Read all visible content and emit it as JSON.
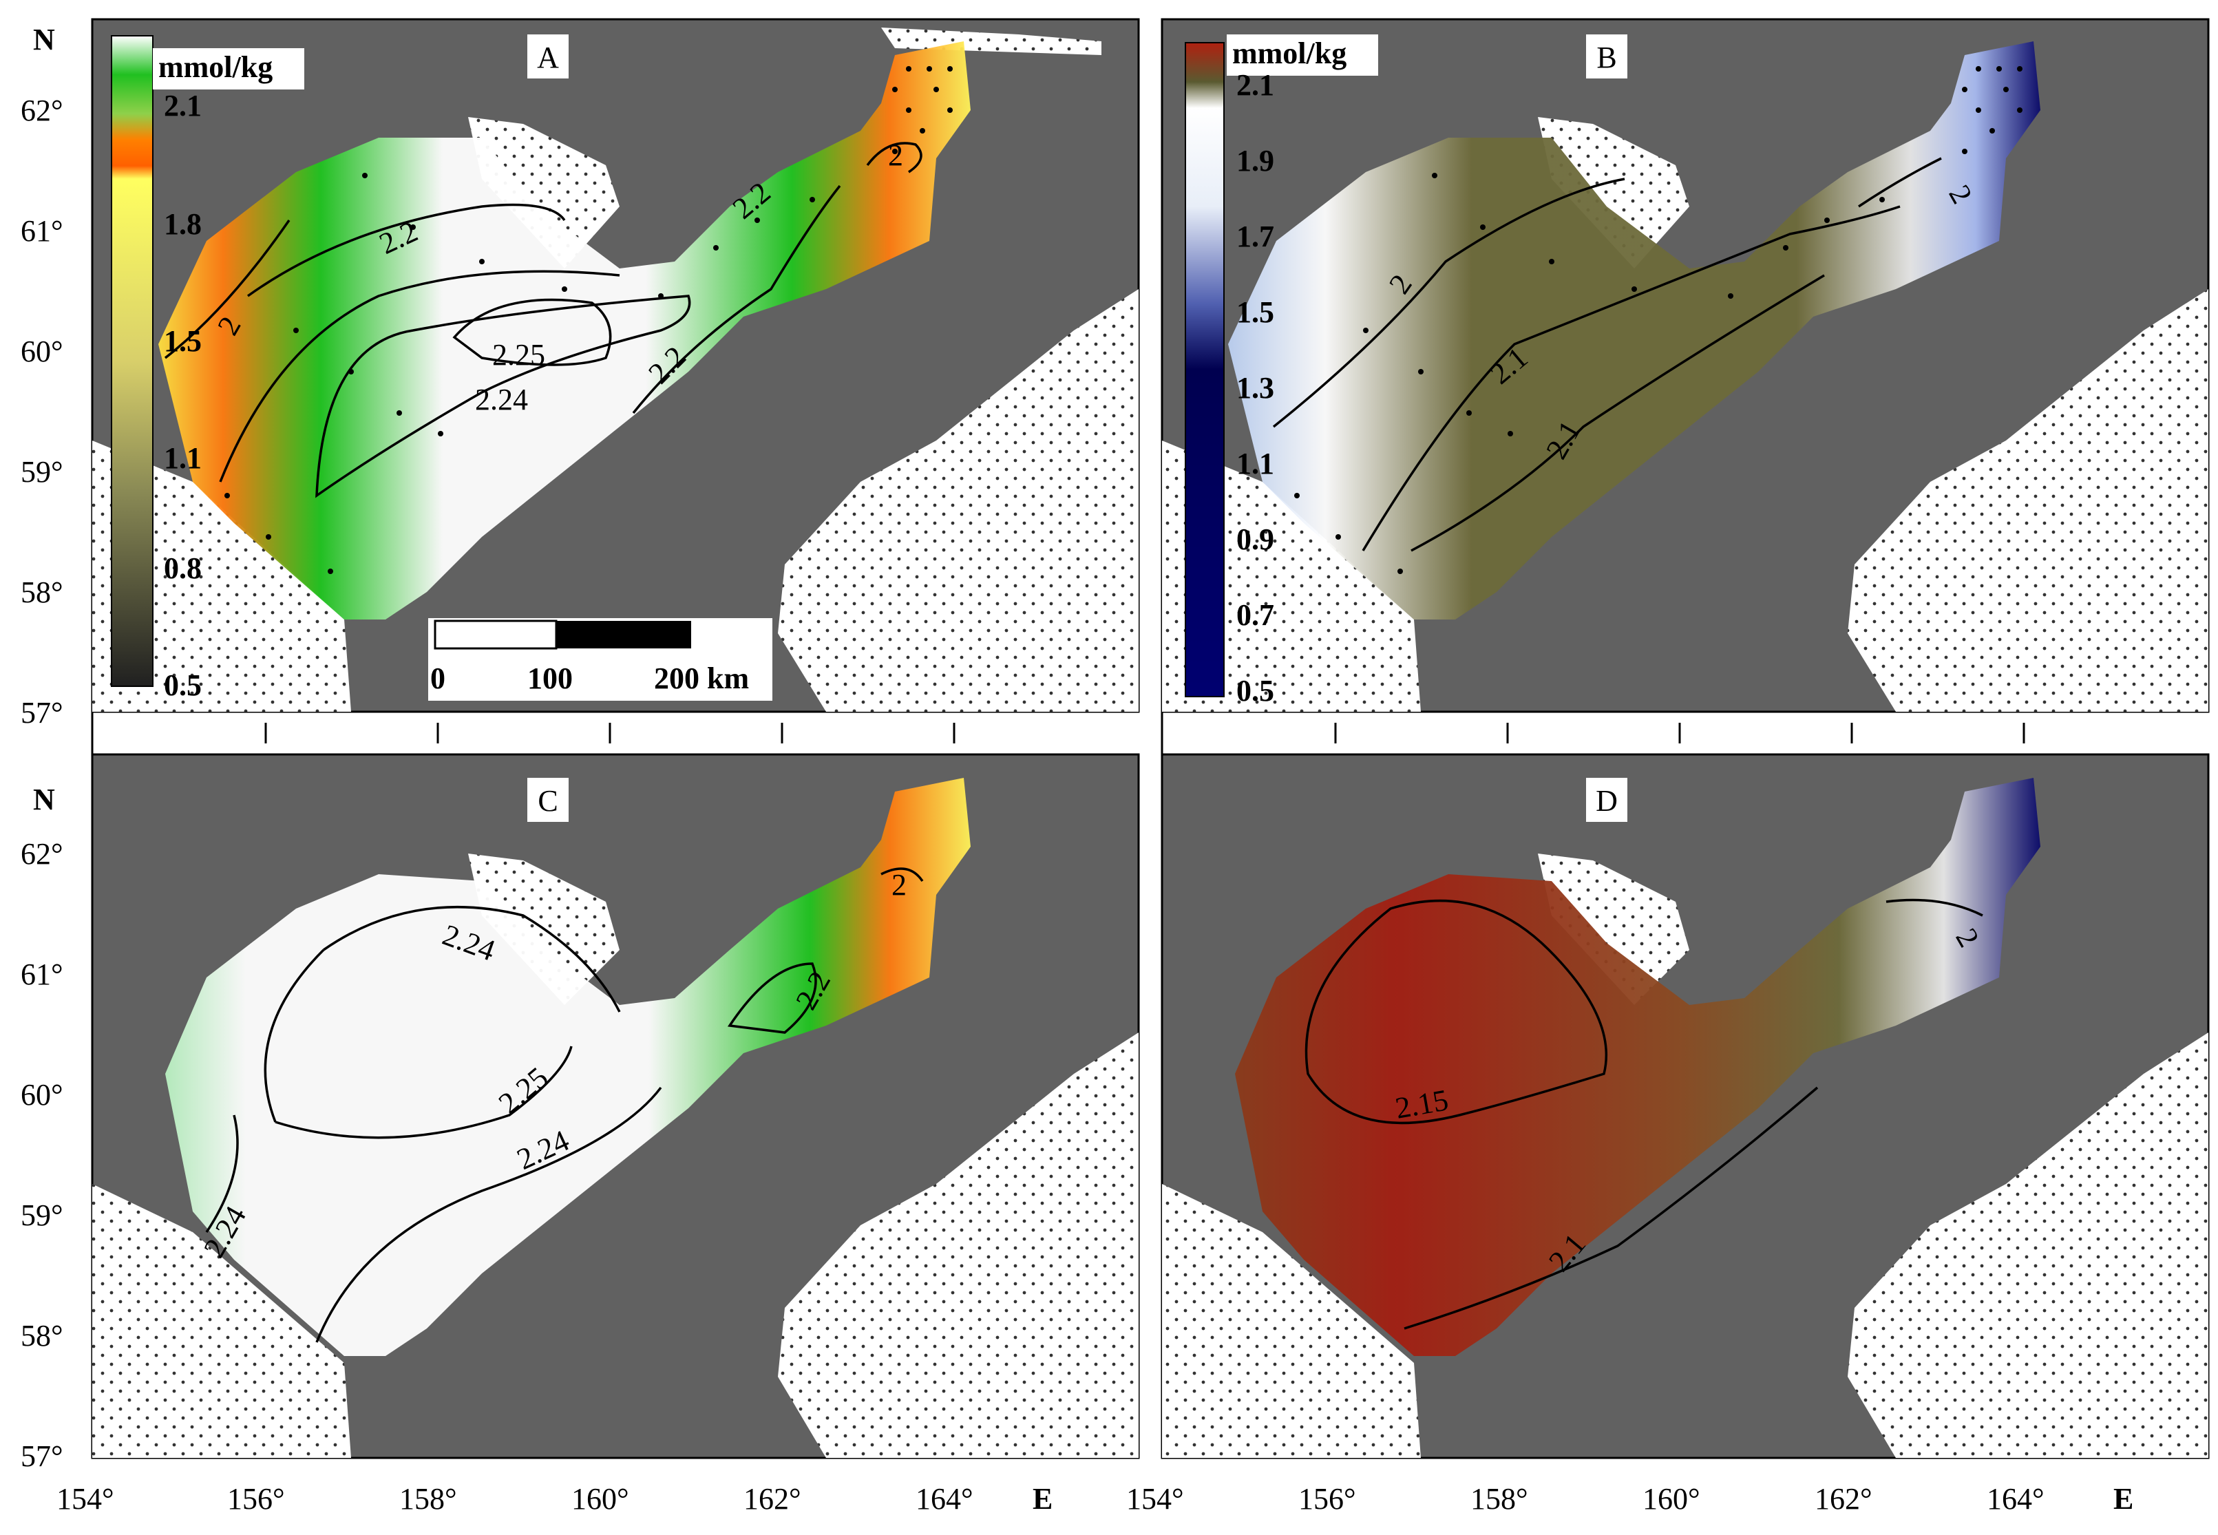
{
  "axes": {
    "north_label": "N",
    "east_label": "E",
    "lat_ticks": [
      "57°",
      "58°",
      "59°",
      "60°",
      "61°",
      "62°"
    ],
    "lon_ticks": [
      "154°",
      "156°",
      "158°",
      "160°",
      "162°",
      "164°"
    ]
  },
  "panels": {
    "A": {
      "letter": "A",
      "colorbar": {
        "unit": "mmol/kg",
        "ticks": [
          "2.1",
          "1.8",
          "1.5",
          "1.1",
          "0.8",
          "0.5"
        ],
        "colors": [
          "#ffffff",
          "#20c020",
          "#ff8000",
          "#ffff40",
          "#b0b060",
          "#303030"
        ]
      },
      "contours": [
        "2.2",
        "2.2",
        "2",
        "2.25",
        "2.24",
        "2.2",
        "2"
      ],
      "scalebar": {
        "labels": [
          "0",
          "100",
          "200 km"
        ]
      }
    },
    "B": {
      "letter": "B",
      "colorbar": {
        "unit": "mmol/kg",
        "ticks": [
          "2.1",
          "1.9",
          "1.7",
          "1.5",
          "1.3",
          "1.1",
          "0.9",
          "0.7",
          "0.5"
        ],
        "colors": [
          "#b02010",
          "#5a5a30",
          "#ffffff",
          "#3040a0",
          "#000060"
        ]
      },
      "contours": [
        "2",
        "2.1",
        "2.1",
        "2"
      ]
    },
    "C": {
      "letter": "C",
      "contours": [
        "2.24",
        "2.25",
        "2.24",
        "2.24",
        "2",
        "2.2"
      ]
    },
    "D": {
      "letter": "D",
      "contours": [
        "2.15",
        "2.1",
        "2"
      ]
    }
  },
  "colors": {
    "land": "#616161",
    "sea_white": "#ffffff",
    "green": "#1fc41f",
    "orange": "#ff7b10",
    "yellow": "#fff35a",
    "olive": "#6d6a3a",
    "red": "#a21e12",
    "navy": "#0a0a6a"
  }
}
